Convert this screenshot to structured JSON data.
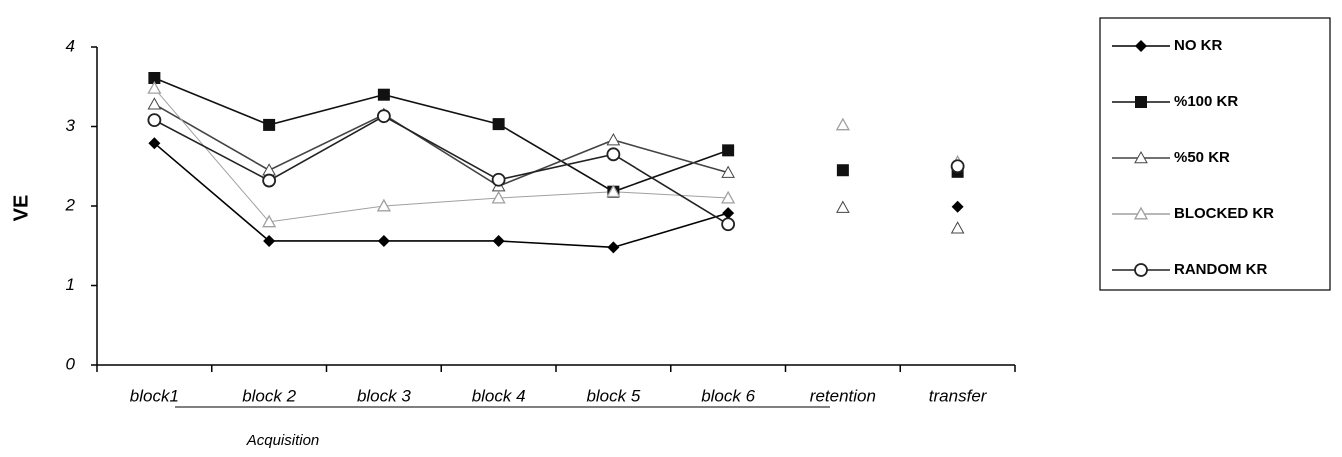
{
  "chart_data": {
    "type": "line",
    "y_label": "VE",
    "group_label": "Acquisition",
    "categories": [
      "block1",
      "block 2",
      "block 3",
      "block 4",
      "block 5",
      "block 6"
    ],
    "test_categories": [
      "retention",
      "transfer"
    ],
    "ylim": [
      0,
      4
    ],
    "yticks": [
      0,
      1,
      2,
      3,
      4
    ],
    "series": [
      {
        "name": "NO KR",
        "color": "#000000",
        "marker": "diamond",
        "values": [
          2.79,
          1.56,
          1.56,
          1.56,
          1.48,
          1.91
        ],
        "test_values": [
          null,
          1.99
        ]
      },
      {
        "name": "%100 KR",
        "color": "#111111",
        "marker": "square",
        "values": [
          3.61,
          3.02,
          3.4,
          3.03,
          2.18,
          2.7
        ],
        "test_values": [
          2.45,
          2.43
        ]
      },
      {
        "name": "%50 KR",
        "color": "#444444",
        "marker": "open-triangle",
        "values": [
          3.28,
          2.45,
          3.15,
          2.25,
          2.83,
          2.42
        ],
        "test_values": [
          1.98,
          1.72
        ]
      },
      {
        "name": "BLOCKED KR",
        "color": "#a0a0a0",
        "marker": "triangle",
        "values": [
          3.48,
          1.8,
          2.0,
          2.1,
          2.18,
          2.1
        ],
        "test_values": [
          3.02,
          2.55
        ]
      },
      {
        "name": "RANDOM KR",
        "color": "#222222",
        "marker": "circle",
        "values": [
          3.08,
          2.32,
          3.13,
          2.33,
          2.65,
          1.77
        ],
        "test_values": [
          null,
          2.5
        ]
      }
    ]
  }
}
